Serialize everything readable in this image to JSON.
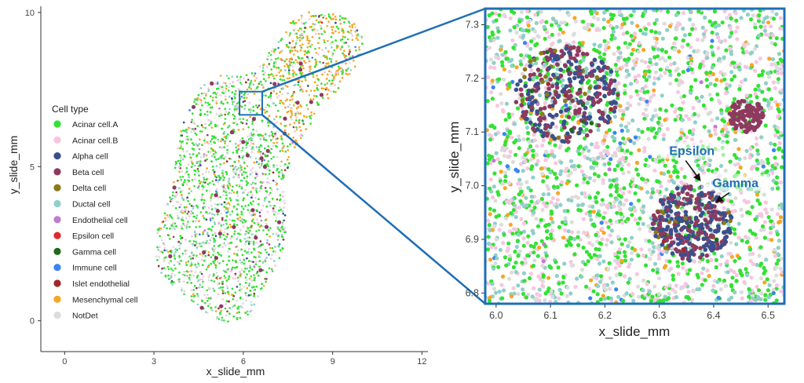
{
  "chart_data": [
    {
      "type": "scatter",
      "xlabel": "x_slide_mm",
      "ylabel": "y_slide_mm",
      "xlim": [
        -0.8,
        12.2
      ],
      "ylim": [
        -1.0,
        10.2
      ],
      "x_ticks": [
        0,
        3,
        6,
        9,
        12
      ],
      "y_ticks": [
        0,
        5,
        10
      ],
      "grid": false,
      "legend_position": "left-inside",
      "legend": {
        "title": "Cell type",
        "entries": [
          {
            "name": "Acinar cell.A",
            "color": "#33e233"
          },
          {
            "name": "Acinar cell.B",
            "color": "#f7c6e0"
          },
          {
            "name": "Alpha cell",
            "color": "#3b4f8c"
          },
          {
            "name": "Beta cell",
            "color": "#8e3a5f"
          },
          {
            "name": "Delta cell",
            "color": "#8a7a1a"
          },
          {
            "name": "Ductal cell",
            "color": "#8fd0c8"
          },
          {
            "name": "Endothelial cell",
            "color": "#c27ad0"
          },
          {
            "name": "Epsilon cell",
            "color": "#e02a2a"
          },
          {
            "name": "Gamma cell",
            "color": "#1f6a1f"
          },
          {
            "name": "Immune cell",
            "color": "#3a84f2"
          },
          {
            "name": "Islet endothelial",
            "color": "#a02828"
          },
          {
            "name": "Mesenchymal cell",
            "color": "#f6a623"
          },
          {
            "name": "NotDet",
            "color": "#dcdcdc"
          }
        ]
      },
      "zoom_box": {
        "x0": 5.98,
        "x1": 6.53,
        "y0": 6.78,
        "y1": 7.33
      }
    },
    {
      "type": "scatter",
      "xlabel": "x_slide_mm",
      "ylabel": "y_slide_mm",
      "xlim": [
        5.98,
        6.53
      ],
      "ylim": [
        6.78,
        7.33
      ],
      "x_ticks": [
        6.0,
        6.1,
        6.2,
        6.3,
        6.4,
        6.5
      ],
      "x_tick_labels": [
        "6.0",
        "6.1",
        "6.2",
        "6.3",
        "6.4",
        "6.5"
      ],
      "y_ticks": [
        6.8,
        6.9,
        7.0,
        7.1,
        7.2,
        7.3
      ],
      "y_tick_labels": [
        "6.8",
        "6.9",
        "7.0",
        "7.1",
        "7.2",
        "7.3"
      ],
      "grid": false,
      "annotations": [
        {
          "text": "Epsilon",
          "label_at": [
            6.36,
            7.06
          ],
          "arrow_to": [
            6.375,
            7.01
          ],
          "color": "#1f6fb5"
        },
        {
          "text": "Gamma",
          "label_at": [
            6.44,
            7.0
          ],
          "arrow_to": [
            6.405,
            6.97
          ],
          "color": "#1f6fb5"
        }
      ],
      "clusters": [
        {
          "type": "islet",
          "cx": 6.13,
          "cy": 7.17,
          "r": 0.09
        },
        {
          "type": "islet",
          "cx": 6.36,
          "cy": 6.93,
          "r": 0.07
        },
        {
          "type": "beta-cluster",
          "cx": 6.46,
          "cy": 7.13,
          "r": 0.03
        }
      ]
    }
  ],
  "frame_color": "#1f6fb5"
}
